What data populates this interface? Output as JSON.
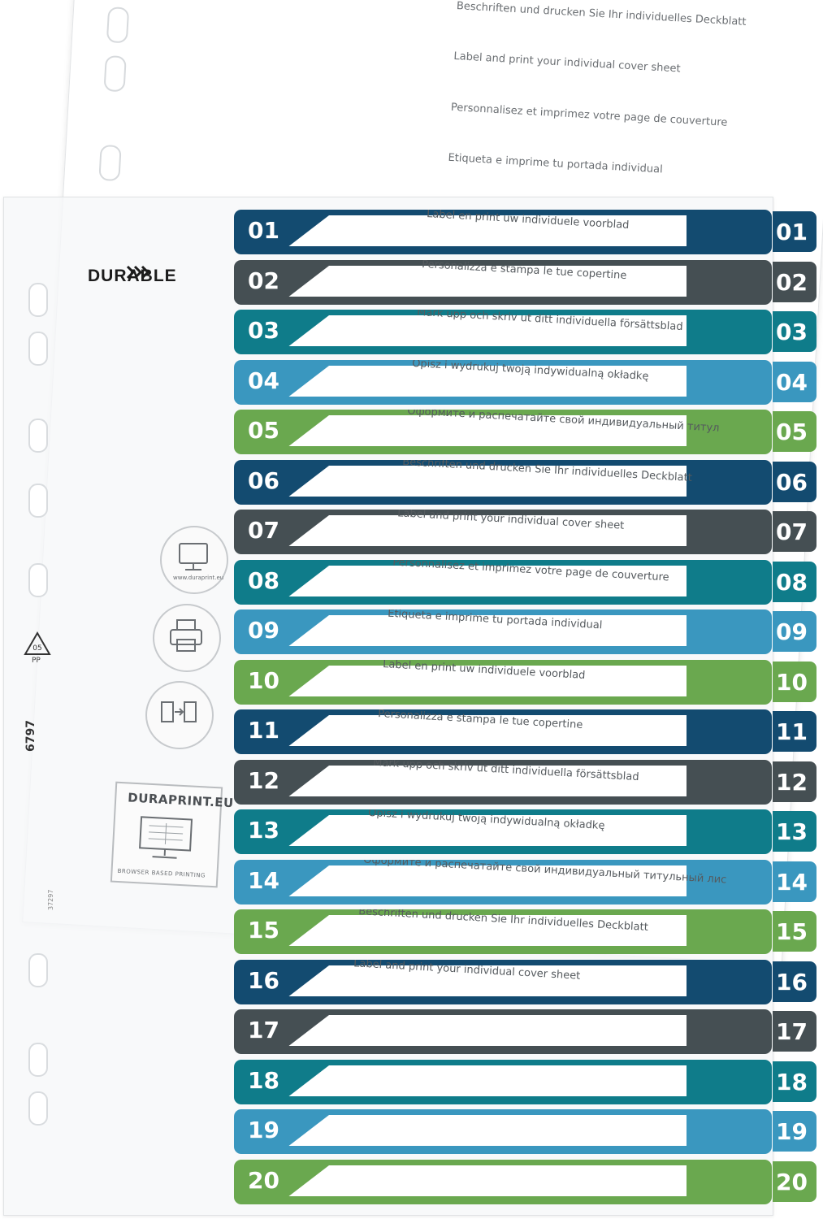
{
  "brand": {
    "name": "DURABLE"
  },
  "cover_texts": [
    "Beschriften und drucken Sie Ihr individuelles Deckblatt",
    "Label and print your individual cover sheet",
    "Personnalisez et imprimez votre page de couverture",
    "Etiqueta e imprime tu portada individual"
  ],
  "icons": {
    "monitor": "monitor-icon",
    "printer": "printer-icon",
    "transfer": "document-transfer-icon",
    "monitor_url": "www.duraprint.eu"
  },
  "duraprint": {
    "title": "DURAPRINT.EU",
    "subtitle": "BROWSER BASED PRINTING"
  },
  "recycle": {
    "code": "05",
    "material": "PP"
  },
  "product_code": "6797",
  "small_code": "37297",
  "colors": {
    "navy": "#134b70",
    "slate": "#454f53",
    "teal": "#0f7c8a",
    "sky": "#3a97bf",
    "green": "#6aa84f"
  },
  "rows": [
    {
      "num": "01",
      "color": "#134b70",
      "label": "Label en print uw individuele voorblad"
    },
    {
      "num": "02",
      "color": "#454f53",
      "label": "Personalizza e stampa le tue copertine"
    },
    {
      "num": "03",
      "color": "#0f7c8a",
      "label": "Märk upp och skriv ut ditt individuella försättsblad"
    },
    {
      "num": "04",
      "color": "#3a97bf",
      "label": "Opisz i wydrukuj twoją indywidualną okładkę"
    },
    {
      "num": "05",
      "color": "#6aa84f",
      "label": "Оформите и распечатайте свой индивидуальный титул"
    },
    {
      "num": "06",
      "color": "#134b70",
      "label": "Beschriften und drucken Sie Ihr individuelles Deckblatt"
    },
    {
      "num": "07",
      "color": "#454f53",
      "label": "Label and print your individual cover sheet"
    },
    {
      "num": "08",
      "color": "#0f7c8a",
      "label": "Personnalisez et imprimez votre page de couverture"
    },
    {
      "num": "09",
      "color": "#3a97bf",
      "label": "Etiqueta e imprime tu portada individual"
    },
    {
      "num": "10",
      "color": "#6aa84f",
      "label": "Label en print uw individuele voorblad"
    },
    {
      "num": "11",
      "color": "#134b70",
      "label": "Personalizza e stampa le tue copertine"
    },
    {
      "num": "12",
      "color": "#454f53",
      "label": "Märk upp och skriv ut ditt individuella försättsblad"
    },
    {
      "num": "13",
      "color": "#0f7c8a",
      "label": "Opisz i wydrukuj twoją indywidualną okładkę"
    },
    {
      "num": "14",
      "color": "#3a97bf",
      "label": "Оформите и распечатайте свой индивидуальный титульный лис"
    },
    {
      "num": "15",
      "color": "#6aa84f",
      "label": "Beschriften und drucken Sie Ihr individuelles Deckblatt"
    },
    {
      "num": "16",
      "color": "#134b70",
      "label": "Label and print your individual cover sheet"
    },
    {
      "num": "17",
      "color": "#454f53",
      "label": ""
    },
    {
      "num": "18",
      "color": "#0f7c8a",
      "label": ""
    },
    {
      "num": "19",
      "color": "#3a97bf",
      "label": ""
    },
    {
      "num": "20",
      "color": "#6aa84f",
      "label": ""
    }
  ]
}
